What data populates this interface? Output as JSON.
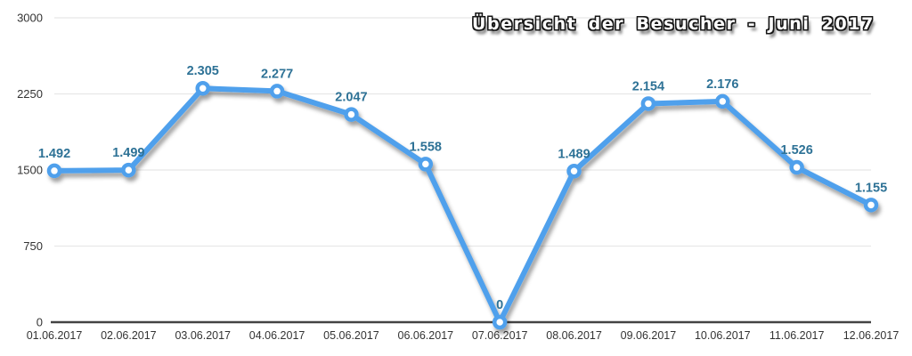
{
  "chart_data": {
    "type": "line",
    "title": "Übersicht der Besucher - Juni 2017",
    "categories": [
      "01.06.2017",
      "02.06.2017",
      "03.06.2017",
      "04.06.2017",
      "05.06.2017",
      "06.06.2017",
      "07.06.2017",
      "08.06.2017",
      "09.06.2017",
      "10.06.2017",
      "11.06.2017",
      "12.06.2017"
    ],
    "series": [
      {
        "name": "Besucher",
        "values": [
          1492,
          1499,
          2305,
          2277,
          2047,
          1558,
          0,
          1489,
          2154,
          2176,
          1526,
          1155
        ]
      }
    ],
    "value_labels": [
      "1.492",
      "1.499",
      "2.305",
      "2.277",
      "2.047",
      "1.558",
      "0",
      "1.489",
      "2.154",
      "2.176",
      "1.526",
      "1.155"
    ],
    "xlabel": "",
    "ylabel": "",
    "ylim": [
      0,
      3000
    ],
    "yticks": [
      0,
      750,
      1500,
      2250,
      3000
    ],
    "ytick_labels": [
      "0",
      "750",
      "1500",
      "2250",
      "3000"
    ],
    "grid": true,
    "legend": false,
    "colors": {
      "line": "#4FA0EC",
      "marker_fill": "#FFFFFF",
      "data_label": "#2E7296",
      "tick_label": "#333333",
      "gridline": "#E8E8E8",
      "axis_line": "#434343",
      "title_text": "#FDFDFD",
      "title_outline": "#161616"
    }
  }
}
